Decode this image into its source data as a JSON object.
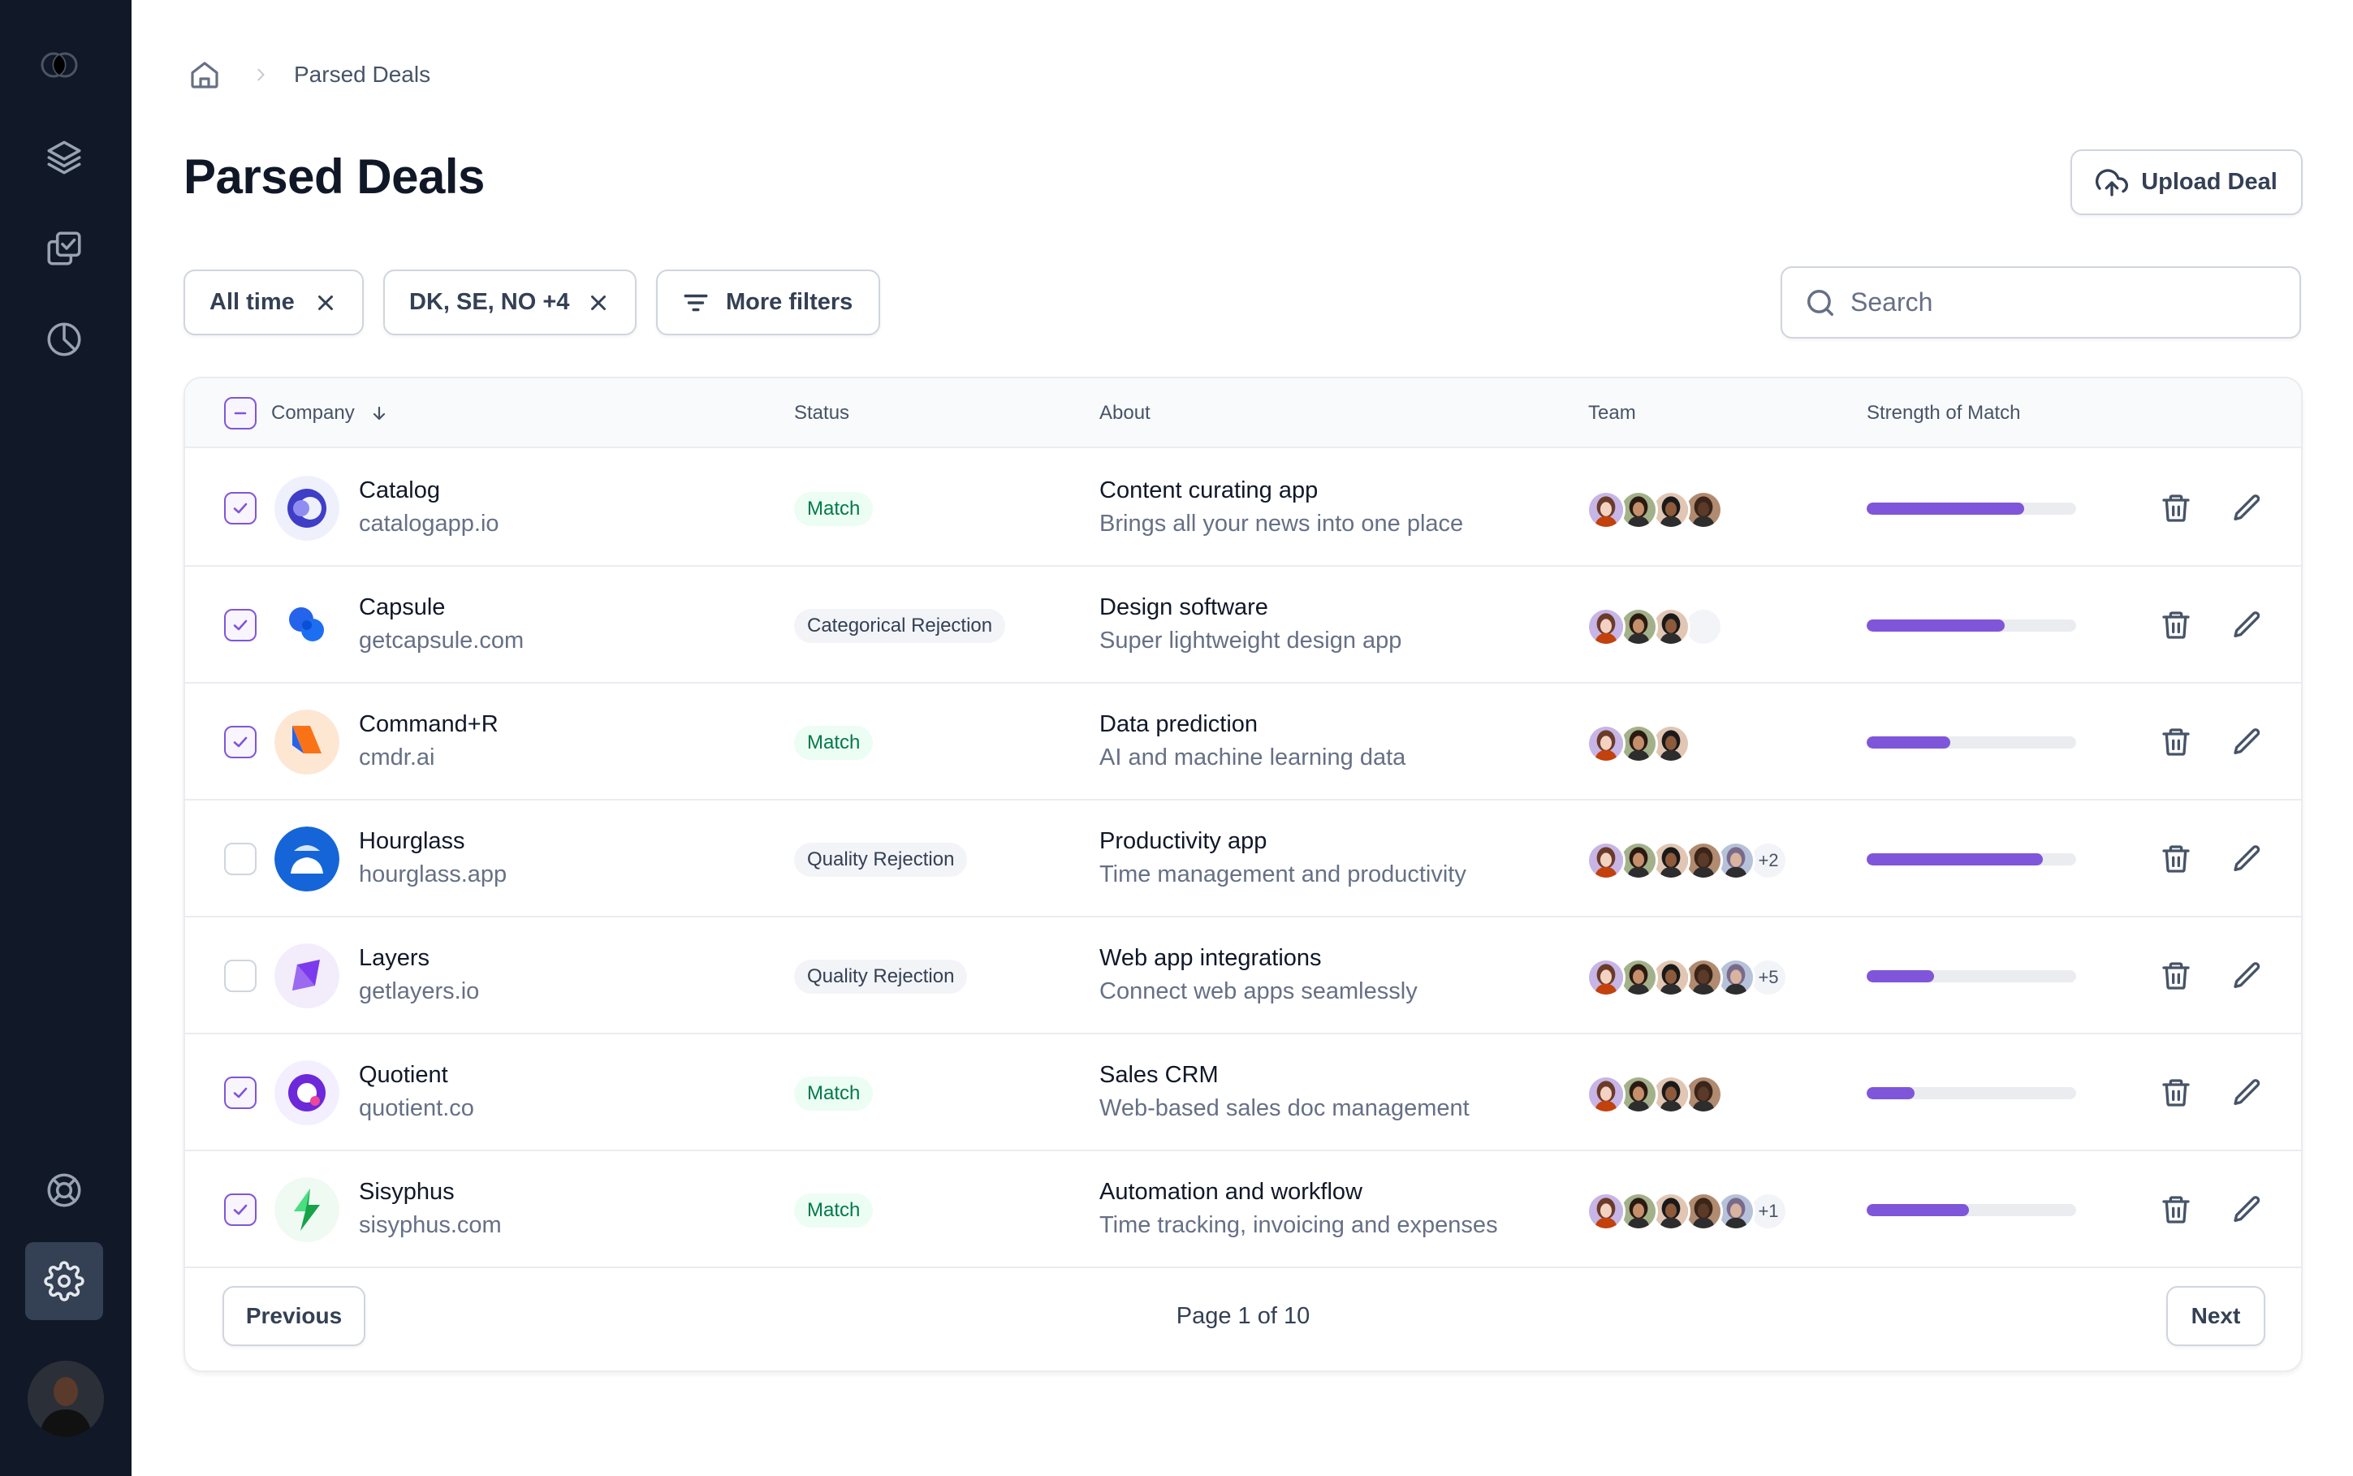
{
  "colors": {
    "sidebar_bg": "#111827",
    "accent": "#7f56d9",
    "match_bg": "#ecfdf3",
    "match_text": "#027a48",
    "reject_bg": "#f2f4f7"
  },
  "sidebar": {
    "top_items": [
      {
        "name": "layers",
        "icon": "layers-icon"
      },
      {
        "name": "check-copy",
        "icon": "check-copy-icon"
      },
      {
        "name": "pie-chart",
        "icon": "pie-chart-icon"
      }
    ],
    "bottom_items": [
      {
        "name": "support",
        "icon": "life-buoy-icon"
      },
      {
        "name": "settings",
        "icon": "gear-icon",
        "active": true
      }
    ]
  },
  "breadcrumb": {
    "home_icon": "home-icon",
    "current": "Parsed Deals"
  },
  "page": {
    "title": "Parsed Deals",
    "upload_label": "Upload Deal"
  },
  "filters": {
    "time": "All time",
    "countries": "DK, SE, NO +4",
    "more": "More filters"
  },
  "search": {
    "placeholder": "Search",
    "value": ""
  },
  "table": {
    "columns": {
      "company": "Company",
      "status": "Status",
      "about": "About",
      "team": "Team",
      "strength": "Strength of Match"
    },
    "rows": [
      {
        "checked": true,
        "company": "Catalog",
        "url": "catalogapp.io",
        "status": "Match",
        "status_type": "match",
        "about_title": "Content curating app",
        "about_sub": "Brings all your news into one place",
        "team_count": 4,
        "team_more": "",
        "strength": 0.75
      },
      {
        "checked": true,
        "company": "Capsule",
        "url": "getcapsule.com",
        "status": "Categorical Rejection",
        "status_type": "reject",
        "about_title": "Design software",
        "about_sub": "Super lightweight design app",
        "team_count": 4,
        "team_more": "",
        "strength": 0.66
      },
      {
        "checked": true,
        "company": "Command+R",
        "url": "cmdr.ai",
        "status": "Match",
        "status_type": "match",
        "about_title": "Data prediction",
        "about_sub": "AI and machine learning data",
        "team_count": 3,
        "team_more": "",
        "strength": 0.4
      },
      {
        "checked": false,
        "company": "Hourglass",
        "url": "hourglass.app",
        "status": "Quality Rejection",
        "status_type": "reject",
        "about_title": "Productivity app",
        "about_sub": "Time management and productivity",
        "team_count": 5,
        "team_more": "+2",
        "strength": 0.84
      },
      {
        "checked": false,
        "company": "Layers",
        "url": "getlayers.io",
        "status": "Quality Rejection",
        "status_type": "reject",
        "about_title": "Web app integrations",
        "about_sub": "Connect web apps seamlessly",
        "team_count": 5,
        "team_more": "+5",
        "strength": 0.32
      },
      {
        "checked": true,
        "company": "Quotient",
        "url": "quotient.co",
        "status": "Match",
        "status_type": "match",
        "about_title": "Sales CRM",
        "about_sub": "Web-based sales doc management",
        "team_count": 4,
        "team_more": "",
        "strength": 0.23
      },
      {
        "checked": true,
        "company": "Sisyphus",
        "url": "sisyphus.com",
        "status": "Match",
        "status_type": "match",
        "about_title": "Automation and workflow",
        "about_sub": "Time tracking, invoicing and expenses",
        "team_count": 5,
        "team_more": "+1",
        "strength": 0.49
      }
    ]
  },
  "pagination": {
    "previous": "Previous",
    "info": "Page 1 of 10",
    "next": "Next"
  }
}
